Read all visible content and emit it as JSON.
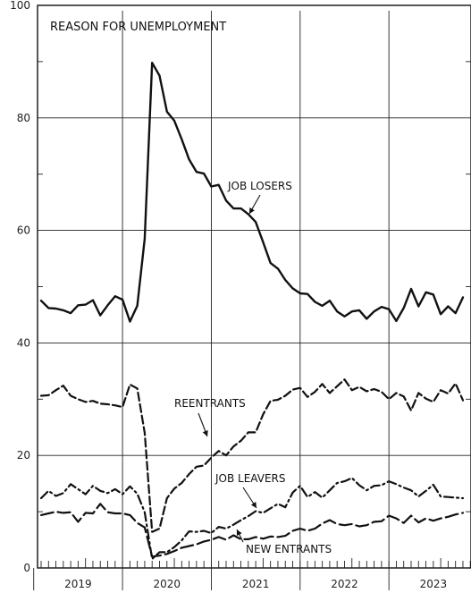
{
  "chart_data": {
    "type": "line",
    "title": "REASON FOR UNEMPLOYMENT",
    "xlabel": "",
    "ylabel": "",
    "ylim": [
      0,
      100
    ],
    "yticks": [
      0,
      20,
      40,
      60,
      80,
      100
    ],
    "ytick_labels": [
      "0",
      "20",
      "40",
      "60",
      "80",
      "100"
    ],
    "x_start": "2019-01",
    "x_end": "2023-12",
    "year_labels": [
      "2019",
      "2020",
      "2021",
      "2022",
      "2023"
    ],
    "grid": true,
    "series": [
      {
        "name": "JOB LOSERS",
        "style": "solid",
        "label_text": "JOB LOSERS",
        "values": [
          47.5,
          46.2,
          46.1,
          45.8,
          45.3,
          46.7,
          46.8,
          47.6,
          44.9,
          46.7,
          48.3,
          47.7,
          43.8,
          46.6,
          58.5,
          89.8,
          87.5,
          81.1,
          79.5,
          76.2,
          72.6,
          70.4,
          70.1,
          67.8,
          68.1,
          65.3,
          63.9,
          63.9,
          62.9,
          61.5,
          57.9,
          54.2,
          53.2,
          51.2,
          49.7,
          48.8,
          48.7,
          47.3,
          46.6,
          47.5,
          45.6,
          44.7,
          45.6,
          45.8,
          44.3,
          45.6,
          46.4,
          46.0,
          43.9,
          46.2,
          49.6,
          46.5,
          49.0,
          48.6,
          45.1,
          46.5,
          45.3,
          48.1
        ]
      },
      {
        "name": "REENTRANTS",
        "style": "dashed",
        "label_text": "REENTRANTS",
        "values": [
          30.6,
          30.7,
          31.6,
          32.4,
          30.6,
          30.0,
          29.5,
          29.7,
          29.2,
          29.1,
          28.9,
          28.6,
          32.6,
          31.9,
          24.0,
          6.4,
          7.0,
          12.4,
          14.1,
          15.1,
          16.7,
          18.0,
          18.2,
          19.6,
          20.8,
          20.0,
          21.6,
          22.6,
          24.1,
          24.1,
          27.3,
          29.7,
          29.9,
          30.6,
          31.7,
          32.0,
          30.4,
          31.3,
          32.7,
          31.1,
          32.3,
          33.5,
          31.6,
          32.2,
          31.4,
          31.8,
          31.3,
          30.0,
          31.1,
          30.5,
          28.0,
          31.1,
          30.1,
          29.5,
          31.6,
          31.0,
          32.8,
          29.8
        ]
      },
      {
        "name": "JOB LEAVERS",
        "style": "dashdot",
        "label_text": "JOB LEAVERS",
        "values": [
          12.4,
          13.7,
          12.8,
          13.3,
          14.9,
          14.0,
          13.1,
          14.6,
          13.7,
          13.3,
          14.0,
          13.1,
          14.5,
          13.2,
          9.9,
          1.6,
          2.8,
          2.8,
          3.7,
          4.9,
          6.5,
          6.4,
          6.6,
          6.2,
          7.3,
          7.0,
          7.7,
          8.5,
          9.2,
          10.1,
          9.8,
          10.6,
          11.4,
          10.8,
          13.4,
          14.6,
          12.6,
          13.5,
          12.5,
          13.8,
          15.1,
          15.4,
          16.0,
          14.7,
          13.8,
          14.6,
          14.7,
          15.4,
          14.9,
          14.3,
          13.8,
          12.7,
          13.7,
          14.8,
          12.7,
          12.6,
          12.5,
          12.4
        ]
      },
      {
        "name": "NEW ENTRANTS",
        "style": "longdash",
        "label_text": "NEW ENTRANTS",
        "values": [
          9.4,
          9.7,
          10.0,
          9.8,
          9.9,
          8.2,
          9.8,
          9.7,
          11.4,
          9.9,
          9.7,
          9.7,
          9.4,
          8.0,
          7.2,
          2.0,
          2.2,
          2.5,
          3.0,
          3.6,
          3.9,
          4.2,
          4.7,
          5.0,
          5.5,
          5.0,
          5.8,
          5.1,
          5.1,
          5.5,
          5.2,
          5.6,
          5.5,
          5.7,
          6.6,
          7.0,
          6.6,
          7.0,
          7.9,
          8.5,
          7.8,
          7.6,
          7.8,
          7.4,
          7.6,
          8.2,
          8.3,
          9.3,
          8.8,
          8.0,
          9.3,
          8.1,
          8.8,
          8.4,
          8.8,
          9.1,
          9.5,
          9.8
        ]
      }
    ]
  }
}
